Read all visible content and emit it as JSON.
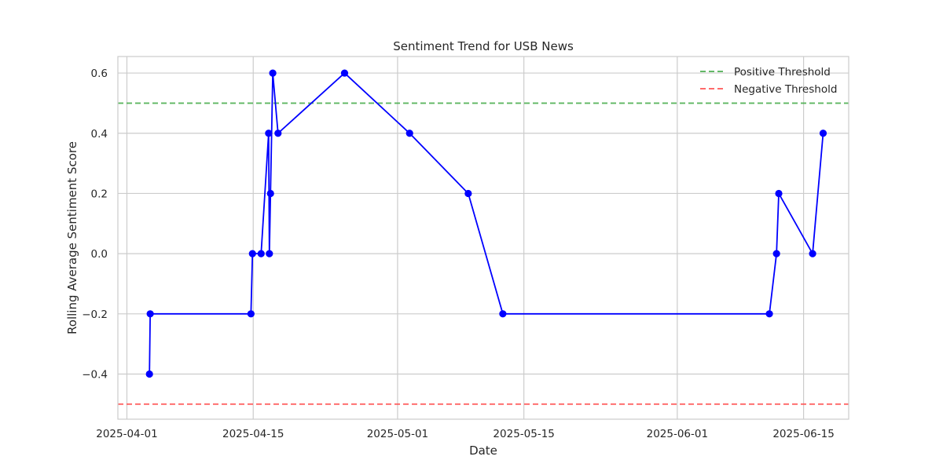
{
  "chart_data": {
    "type": "line",
    "title": "Sentiment Trend for USB News",
    "xlabel": "Date",
    "ylabel": "Rolling Average Sentiment Score",
    "xlim": [
      "2025-03-31",
      "2025-06-20"
    ],
    "ylim": [
      -0.55,
      0.655
    ],
    "x_ticks": [
      "2025-04-01",
      "2025-04-15",
      "2025-05-01",
      "2025-05-15",
      "2025-06-01",
      "2025-06-15"
    ],
    "y_ticks": [
      -0.4,
      -0.2,
      0.0,
      0.2,
      0.4,
      0.6
    ],
    "y_tick_labels": [
      "−0.4",
      "−0.2",
      "0.0",
      "0.2",
      "0.4",
      "0.6"
    ],
    "grid": true,
    "series": [
      {
        "name": "Rolling Average Sentiment",
        "color": "#0000ff",
        "marker": "circle",
        "points": [
          {
            "x": "2025-04-03 12:00",
            "y": -0.4
          },
          {
            "x": "2025-04-03 14:00",
            "y": -0.2
          },
          {
            "x": "2025-04-14 18:00",
            "y": -0.2
          },
          {
            "x": "2025-04-14 22:00",
            "y": 0.0
          },
          {
            "x": "2025-04-15 21:00",
            "y": 0.0
          },
          {
            "x": "2025-04-16 17:00",
            "y": 0.4
          },
          {
            "x": "2025-04-16 19:00",
            "y": 0.0
          },
          {
            "x": "2025-04-16 22:00",
            "y": 0.2
          },
          {
            "x": "2025-04-17 04:00",
            "y": 0.6
          },
          {
            "x": "2025-04-17 18:00",
            "y": 0.4
          },
          {
            "x": "2025-04-25 03:00",
            "y": 0.6
          },
          {
            "x": "2025-05-02 08:00",
            "y": 0.4
          },
          {
            "x": "2025-05-08 20:00",
            "y": 0.2
          },
          {
            "x": "2025-05-12 16:00",
            "y": -0.2
          },
          {
            "x": "2025-06-11 05:00",
            "y": -0.2
          },
          {
            "x": "2025-06-12 00:00",
            "y": 0.0
          },
          {
            "x": "2025-06-12 06:00",
            "y": 0.2
          },
          {
            "x": "2025-06-16 00:00",
            "y": 0.0
          },
          {
            "x": "2025-06-17 04:00",
            "y": 0.4
          }
        ]
      }
    ],
    "reference_lines": [
      {
        "name": "Positive Threshold",
        "y": 0.5,
        "color": "#4caf50",
        "style": "dashed"
      },
      {
        "name": "Negative Threshold",
        "y": -0.5,
        "color": "#ff5555",
        "style": "dashed"
      }
    ],
    "legend": {
      "placement": "top-right",
      "entries": [
        "Positive Threshold",
        "Negative Threshold"
      ]
    }
  }
}
